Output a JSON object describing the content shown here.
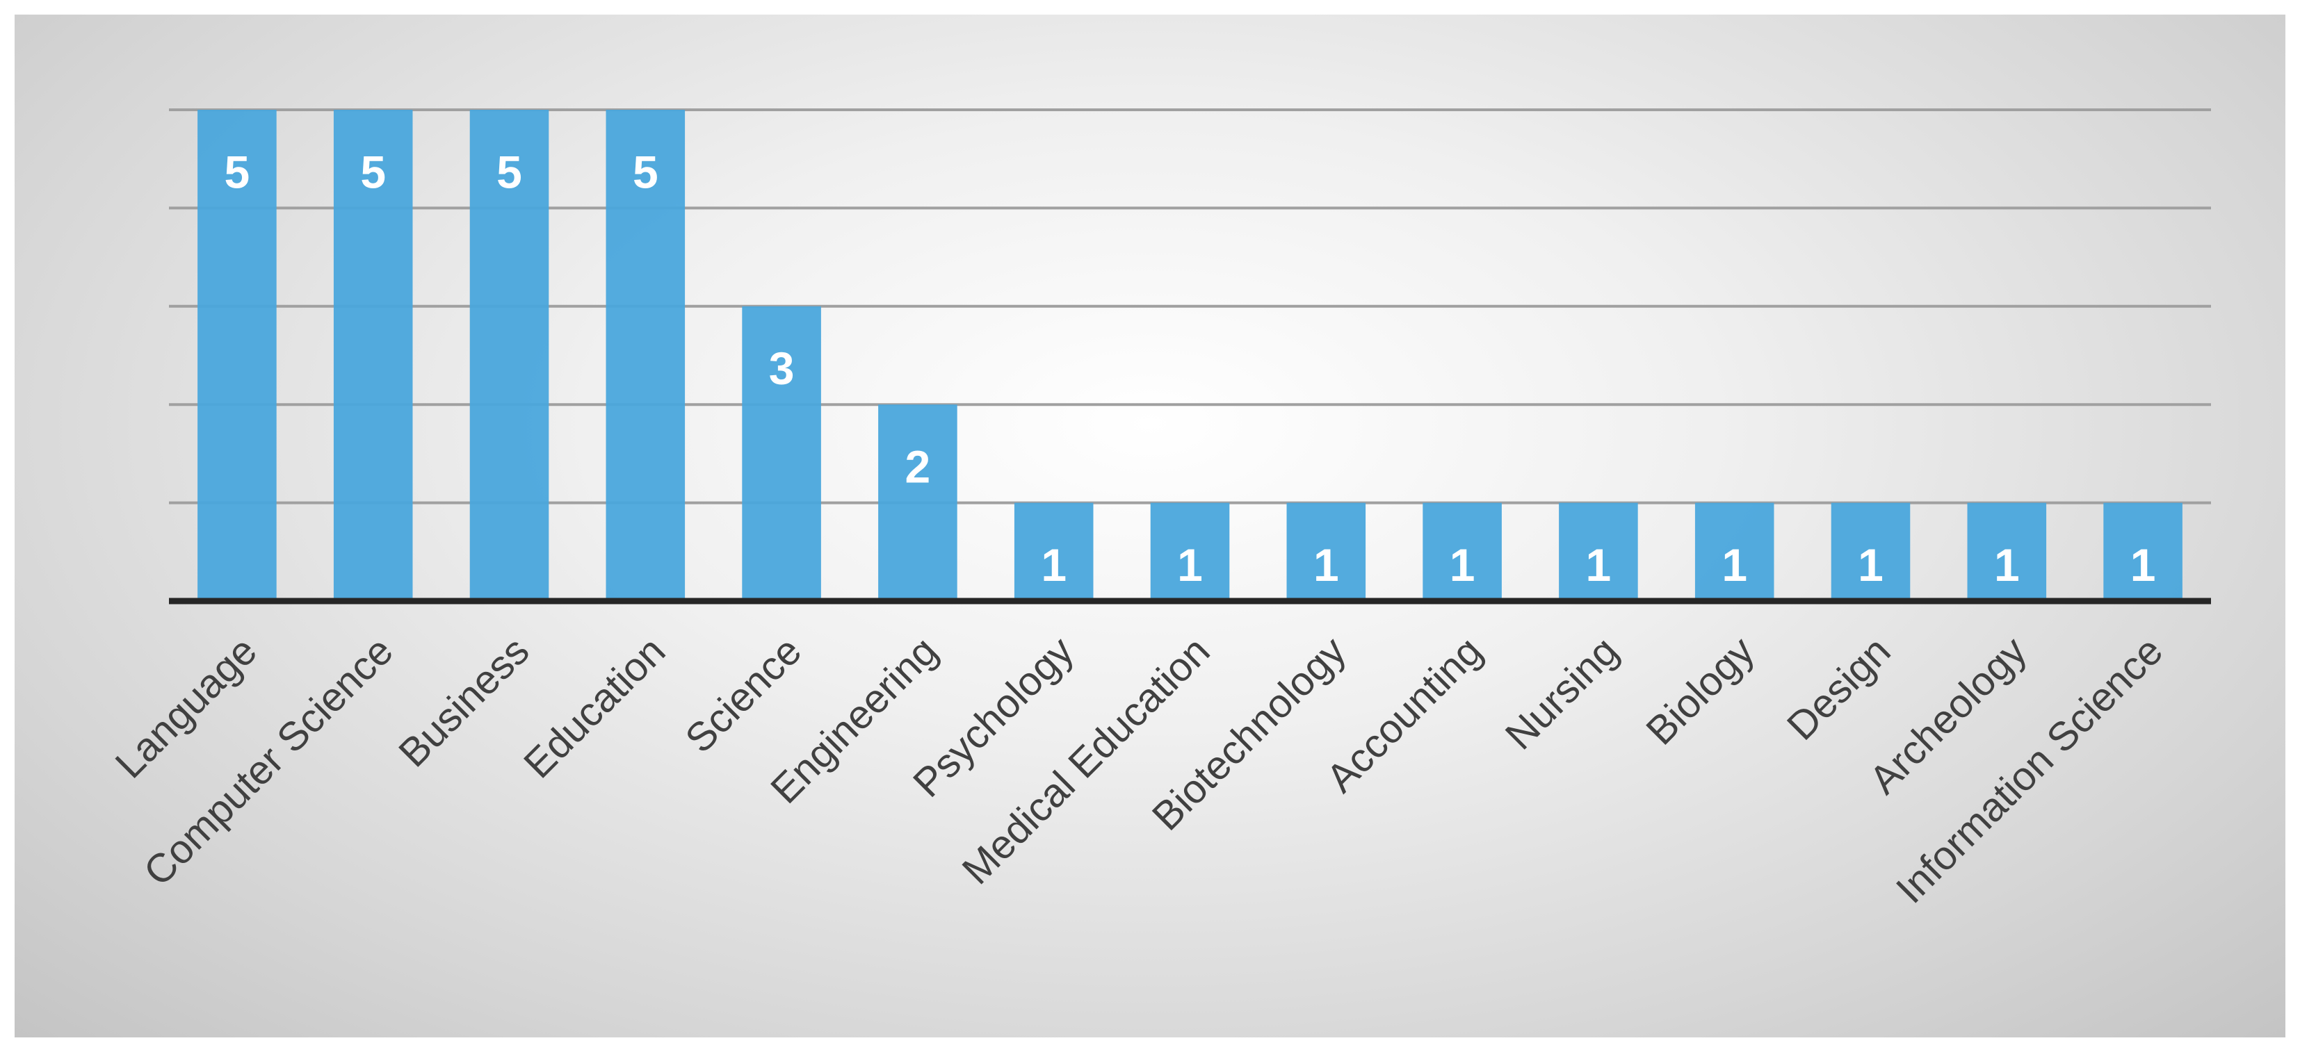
{
  "chart_data": {
    "type": "bar",
    "categories": [
      "Language",
      "Computer Science",
      "Business",
      "Education",
      "Science",
      "Engineering",
      "Psychology",
      "Medical Education",
      "Biotechnology",
      "Accounting",
      "Nursing",
      "Biology",
      "Design",
      "Archeology",
      "Information Science"
    ],
    "values": [
      5,
      5,
      5,
      5,
      3,
      2,
      1,
      1,
      1,
      1,
      1,
      1,
      1,
      1,
      1
    ],
    "color": "#4aa6dc",
    "ylim": [
      0,
      5
    ],
    "yticks": [
      0,
      1,
      2,
      3,
      4,
      5
    ],
    "grid": true
  }
}
